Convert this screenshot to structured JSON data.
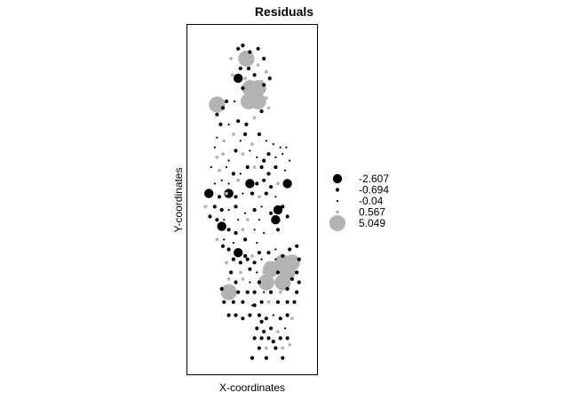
{
  "chart_data": {
    "type": "scatter",
    "title": "Residuals",
    "xlabel": "X-coordinates",
    "ylabel": "Y-coordinates",
    "xlim": [
      0,
      100
    ],
    "ylim": [
      0,
      100
    ],
    "grid": false,
    "axes_ticks": false,
    "legend_position": "right",
    "legend": [
      {
        "label": "-2.607",
        "value": -2.607,
        "color": "#000000"
      },
      {
        "label": "-0.694",
        "value": -0.694,
        "color": "#000000"
      },
      {
        "label": "-0.04",
        "value": -0.04,
        "color": "#000000"
      },
      {
        "label": "0.567",
        "value": 0.567,
        "color": "#b3b3b3"
      },
      {
        "label": "5.049",
        "value": 5.049,
        "color": "#b3b3b3"
      }
    ],
    "colors": {
      "negative": "#000000",
      "positive": "#b3b3b3"
    },
    "points": [
      {
        "x": 38,
        "y": 96,
        "r": -0.694
      },
      {
        "x": 42,
        "y": 97,
        "r": -0.694
      },
      {
        "x": 48,
        "y": 95,
        "r": -0.694
      },
      {
        "x": 55,
        "y": 96,
        "r": -0.694
      },
      {
        "x": 32,
        "y": 93,
        "r": 0.567
      },
      {
        "x": 45,
        "y": 93,
        "r": 5.049
      },
      {
        "x": 50,
        "y": 92,
        "r": 0.567
      },
      {
        "x": 60,
        "y": 93,
        "r": -0.694
      },
      {
        "x": 40,
        "y": 90,
        "r": -0.694
      },
      {
        "x": 47,
        "y": 90,
        "r": -0.694
      },
      {
        "x": 55,
        "y": 91,
        "r": 0.567
      },
      {
        "x": 62,
        "y": 89,
        "r": 0.567
      },
      {
        "x": 33,
        "y": 88,
        "r": 0.567
      },
      {
        "x": 38,
        "y": 87,
        "r": -2.607
      },
      {
        "x": 44,
        "y": 87,
        "r": 0.567
      },
      {
        "x": 52,
        "y": 88,
        "r": -0.694
      },
      {
        "x": 58,
        "y": 86,
        "r": 0.567
      },
      {
        "x": 65,
        "y": 87,
        "r": -0.694
      },
      {
        "x": 42,
        "y": 84,
        "r": -0.694
      },
      {
        "x": 48,
        "y": 84,
        "r": 5.049
      },
      {
        "x": 55,
        "y": 84,
        "r": 5.049
      },
      {
        "x": 60,
        "y": 85,
        "r": -0.694
      },
      {
        "x": 20,
        "y": 79,
        "r": 5.049
      },
      {
        "x": 25,
        "y": 78,
        "r": -0.694
      },
      {
        "x": 20,
        "y": 76,
        "r": -0.694
      },
      {
        "x": 28,
        "y": 80,
        "r": -0.694
      },
      {
        "x": 35,
        "y": 80,
        "r": -0.04
      },
      {
        "x": 43,
        "y": 81,
        "r": 0.567
      },
      {
        "x": 47,
        "y": 80,
        "r": 5.049
      },
      {
        "x": 55,
        "y": 80,
        "r": 5.049
      },
      {
        "x": 62,
        "y": 81,
        "r": 0.567
      },
      {
        "x": 58,
        "y": 77,
        "r": -0.694
      },
      {
        "x": 64,
        "y": 78,
        "r": 0.567
      },
      {
        "x": 23,
        "y": 73,
        "r": -0.694
      },
      {
        "x": 30,
        "y": 73,
        "r": -0.04
      },
      {
        "x": 38,
        "y": 74,
        "r": -0.694
      },
      {
        "x": 45,
        "y": 73,
        "r": -0.694
      },
      {
        "x": 52,
        "y": 75,
        "r": 0.567
      },
      {
        "x": 20,
        "y": 69,
        "r": -0.04
      },
      {
        "x": 26,
        "y": 68,
        "r": 0.567
      },
      {
        "x": 34,
        "y": 70,
        "r": 0.567
      },
      {
        "x": 40,
        "y": 68,
        "r": -0.04
      },
      {
        "x": 44,
        "y": 70,
        "r": -0.694
      },
      {
        "x": 50,
        "y": 67,
        "r": 0.567
      },
      {
        "x": 56,
        "y": 70,
        "r": -0.694
      },
      {
        "x": 62,
        "y": 68,
        "r": -0.04
      },
      {
        "x": 68,
        "y": 67,
        "r": -0.04
      },
      {
        "x": 74,
        "y": 66,
        "r": -0.04
      },
      {
        "x": 79,
        "y": 66,
        "r": -0.04
      },
      {
        "x": 18,
        "y": 66,
        "r": -0.04
      },
      {
        "x": 20,
        "y": 63,
        "r": 0.567
      },
      {
        "x": 25,
        "y": 64,
        "r": 0.567
      },
      {
        "x": 30,
        "y": 62,
        "r": -0.04
      },
      {
        "x": 36,
        "y": 65,
        "r": -0.694
      },
      {
        "x": 42,
        "y": 64,
        "r": 0.567
      },
      {
        "x": 48,
        "y": 65,
        "r": -0.04
      },
      {
        "x": 54,
        "y": 63,
        "r": -0.04
      },
      {
        "x": 60,
        "y": 62,
        "r": -0.694
      },
      {
        "x": 64,
        "y": 64,
        "r": -0.694
      },
      {
        "x": 70,
        "y": 63,
        "r": -0.04
      },
      {
        "x": 76,
        "y": 64,
        "r": -0.04
      },
      {
        "x": 82,
        "y": 62,
        "r": -0.04
      },
      {
        "x": 15,
        "y": 60,
        "r": -0.04
      },
      {
        "x": 22,
        "y": 59,
        "r": 0.567
      },
      {
        "x": 28,
        "y": 60,
        "r": -0.04
      },
      {
        "x": 34,
        "y": 58,
        "r": -0.694
      },
      {
        "x": 40,
        "y": 58,
        "r": -0.04
      },
      {
        "x": 46,
        "y": 60,
        "r": -0.694
      },
      {
        "x": 52,
        "y": 60,
        "r": 0.567
      },
      {
        "x": 58,
        "y": 60,
        "r": -0.694
      },
      {
        "x": 64,
        "y": 58,
        "r": -0.694
      },
      {
        "x": 70,
        "y": 60,
        "r": -0.694
      },
      {
        "x": 78,
        "y": 59,
        "r": -0.04
      },
      {
        "x": 18,
        "y": 55,
        "r": -0.04
      },
      {
        "x": 24,
        "y": 56,
        "r": -0.04
      },
      {
        "x": 30,
        "y": 55,
        "r": -0.04
      },
      {
        "x": 38,
        "y": 56,
        "r": 0.567
      },
      {
        "x": 48,
        "y": 55,
        "r": -2.607
      },
      {
        "x": 54,
        "y": 55,
        "r": -0.694
      },
      {
        "x": 60,
        "y": 56,
        "r": -0.694
      },
      {
        "x": 66,
        "y": 54,
        "r": -0.694
      },
      {
        "x": 72,
        "y": 55,
        "r": 0.567
      },
      {
        "x": 80,
        "y": 55,
        "r": -2.607
      },
      {
        "x": 14,
        "y": 52,
        "r": -0.04
      },
      {
        "x": 22,
        "y": 51,
        "r": -0.694
      },
      {
        "x": 28,
        "y": 52,
        "r": 0.567
      },
      {
        "x": 36,
        "y": 51,
        "r": -0.694
      },
      {
        "x": 42,
        "y": 52,
        "r": -0.04
      },
      {
        "x": 50,
        "y": 52,
        "r": -0.694
      },
      {
        "x": 56,
        "y": 51,
        "r": 0.567
      },
      {
        "x": 62,
        "y": 52,
        "r": -0.694
      },
      {
        "x": 70,
        "y": 51,
        "r": -0.04
      },
      {
        "x": 12,
        "y": 51,
        "r": -0.04
      },
      {
        "x": 13,
        "y": 52,
        "r": -2.607
      },
      {
        "x": 30,
        "y": 52,
        "r": -2.607
      },
      {
        "x": 10,
        "y": 48,
        "r": 0.567
      },
      {
        "x": 18,
        "y": 48,
        "r": -0.694
      },
      {
        "x": 24,
        "y": 47,
        "r": -0.694
      },
      {
        "x": 30,
        "y": 47,
        "r": -0.04
      },
      {
        "x": 36,
        "y": 48,
        "r": -0.694
      },
      {
        "x": 44,
        "y": 46,
        "r": -0.04
      },
      {
        "x": 52,
        "y": 47,
        "r": -0.694
      },
      {
        "x": 58,
        "y": 48,
        "r": -0.04
      },
      {
        "x": 66,
        "y": 46,
        "r": -0.694
      },
      {
        "x": 72,
        "y": 47,
        "r": -2.607
      },
      {
        "x": 76,
        "y": 48,
        "r": -0.694
      },
      {
        "x": 14,
        "y": 45,
        "r": -0.694
      },
      {
        "x": 20,
        "y": 44,
        "r": -0.694
      },
      {
        "x": 26,
        "y": 44,
        "r": -0.04
      },
      {
        "x": 38,
        "y": 44,
        "r": -0.04
      },
      {
        "x": 46,
        "y": 44,
        "r": 0.567
      },
      {
        "x": 56,
        "y": 44,
        "r": -0.04
      },
      {
        "x": 70,
        "y": 44,
        "r": -2.607
      },
      {
        "x": 80,
        "y": 45,
        "r": -0.694
      },
      {
        "x": 24,
        "y": 42,
        "r": -2.607
      },
      {
        "x": 30,
        "y": 41,
        "r": -0.694
      },
      {
        "x": 36,
        "y": 40,
        "r": -0.694
      },
      {
        "x": 42,
        "y": 41,
        "r": 0.567
      },
      {
        "x": 52,
        "y": 41,
        "r": -0.04
      },
      {
        "x": 60,
        "y": 40,
        "r": -0.04
      },
      {
        "x": 72,
        "y": 41,
        "r": -0.694
      },
      {
        "x": 20,
        "y": 38,
        "r": 0.567
      },
      {
        "x": 26,
        "y": 38,
        "r": -0.04
      },
      {
        "x": 34,
        "y": 37,
        "r": -0.04
      },
      {
        "x": 44,
        "y": 38,
        "r": -0.694
      },
      {
        "x": 54,
        "y": 37,
        "r": -0.04
      },
      {
        "x": 25,
        "y": 36,
        "r": -0.694
      },
      {
        "x": 30,
        "y": 35,
        "r": -0.694
      },
      {
        "x": 38,
        "y": 34,
        "r": -2.607
      },
      {
        "x": 44,
        "y": 33,
        "r": -0.694
      },
      {
        "x": 50,
        "y": 33,
        "r": 0.567
      },
      {
        "x": 56,
        "y": 34,
        "r": -0.694
      },
      {
        "x": 64,
        "y": 34,
        "r": -0.694
      },
      {
        "x": 70,
        "y": 35,
        "r": -0.04
      },
      {
        "x": 76,
        "y": 33,
        "r": -0.694
      },
      {
        "x": 82,
        "y": 35,
        "r": -0.694
      },
      {
        "x": 88,
        "y": 36,
        "r": -0.694
      },
      {
        "x": 28,
        "y": 31,
        "r": 0.567
      },
      {
        "x": 34,
        "y": 32,
        "r": -0.694
      },
      {
        "x": 40,
        "y": 31,
        "r": -0.694
      },
      {
        "x": 46,
        "y": 32,
        "r": -0.694
      },
      {
        "x": 52,
        "y": 31,
        "r": -0.694
      },
      {
        "x": 58,
        "y": 32,
        "r": -0.04
      },
      {
        "x": 64,
        "y": 31,
        "r": 0.567
      },
      {
        "x": 70,
        "y": 32,
        "r": -0.04
      },
      {
        "x": 76,
        "y": 31,
        "r": 5.049
      },
      {
        "x": 84,
        "y": 31,
        "r": 5.049
      },
      {
        "x": 90,
        "y": 32,
        "r": -0.694
      },
      {
        "x": 32,
        "y": 28,
        "r": -0.694
      },
      {
        "x": 40,
        "y": 28,
        "r": 0.567
      },
      {
        "x": 48,
        "y": 29,
        "r": -0.694
      },
      {
        "x": 54,
        "y": 28,
        "r": -0.04
      },
      {
        "x": 60,
        "y": 28,
        "r": 0.567
      },
      {
        "x": 66,
        "y": 29,
        "r": 5.049
      },
      {
        "x": 72,
        "y": 28,
        "r": -0.694
      },
      {
        "x": 80,
        "y": 28,
        "r": 5.049
      },
      {
        "x": 88,
        "y": 28,
        "r": -0.694
      },
      {
        "x": 30,
        "y": 26,
        "r": 0.567
      },
      {
        "x": 36,
        "y": 25,
        "r": -0.694
      },
      {
        "x": 42,
        "y": 26,
        "r": 0.567
      },
      {
        "x": 48,
        "y": 25,
        "r": -0.04
      },
      {
        "x": 56,
        "y": 25,
        "r": -0.694
      },
      {
        "x": 62,
        "y": 25,
        "r": 5.049
      },
      {
        "x": 70,
        "y": 25,
        "r": 0.567
      },
      {
        "x": 76,
        "y": 25,
        "r": 5.049
      },
      {
        "x": 84,
        "y": 26,
        "r": -0.694
      },
      {
        "x": 90,
        "y": 25,
        "r": -0.694
      },
      {
        "x": 24,
        "y": 23,
        "r": -0.694
      },
      {
        "x": 30,
        "y": 22,
        "r": 5.049
      },
      {
        "x": 38,
        "y": 22,
        "r": -0.694
      },
      {
        "x": 46,
        "y": 22,
        "r": -0.694
      },
      {
        "x": 52,
        "y": 22,
        "r": -0.694
      },
      {
        "x": 60,
        "y": 22,
        "r": -0.04
      },
      {
        "x": 66,
        "y": 22,
        "r": -0.694
      },
      {
        "x": 74,
        "y": 22,
        "r": 0.567
      },
      {
        "x": 80,
        "y": 23,
        "r": -0.694
      },
      {
        "x": 88,
        "y": 22,
        "r": -0.694
      },
      {
        "x": 26,
        "y": 19,
        "r": -0.694
      },
      {
        "x": 34,
        "y": 19,
        "r": -0.694
      },
      {
        "x": 42,
        "y": 19,
        "r": -0.694
      },
      {
        "x": 50,
        "y": 18,
        "r": -0.04
      },
      {
        "x": 58,
        "y": 19,
        "r": -0.694
      },
      {
        "x": 64,
        "y": 19,
        "r": 0.567
      },
      {
        "x": 72,
        "y": 19,
        "r": -0.694
      },
      {
        "x": 80,
        "y": 19,
        "r": -0.694
      },
      {
        "x": 86,
        "y": 19,
        "r": -0.694
      },
      {
        "x": 30,
        "y": 15,
        "r": -0.694
      },
      {
        "x": 36,
        "y": 15,
        "r": -0.694
      },
      {
        "x": 42,
        "y": 14,
        "r": -0.694
      },
      {
        "x": 48,
        "y": 15,
        "r": -0.694
      },
      {
        "x": 56,
        "y": 15,
        "r": -0.694
      },
      {
        "x": 62,
        "y": 14,
        "r": -0.694
      },
      {
        "x": 68,
        "y": 15,
        "r": -0.04
      },
      {
        "x": 74,
        "y": 14,
        "r": -0.694
      },
      {
        "x": 80,
        "y": 15,
        "r": -0.694
      },
      {
        "x": 84,
        "y": 14,
        "r": 0.567
      },
      {
        "x": 52,
        "y": 18,
        "r": -0.694
      },
      {
        "x": 58,
        "y": 13,
        "r": -0.694
      },
      {
        "x": 54,
        "y": 11,
        "r": -0.694
      },
      {
        "x": 60,
        "y": 10,
        "r": -0.694
      },
      {
        "x": 66,
        "y": 11,
        "r": -0.694
      },
      {
        "x": 72,
        "y": 10,
        "r": 0.567
      },
      {
        "x": 78,
        "y": 11,
        "r": -0.04
      },
      {
        "x": 52,
        "y": 8,
        "r": -0.694
      },
      {
        "x": 58,
        "y": 8,
        "r": -0.694
      },
      {
        "x": 64,
        "y": 8,
        "r": -0.694
      },
      {
        "x": 68,
        "y": 7,
        "r": -0.694
      },
      {
        "x": 74,
        "y": 8,
        "r": -0.694
      },
      {
        "x": 80,
        "y": 8,
        "r": -0.694
      },
      {
        "x": 56,
        "y": 5,
        "r": -0.694
      },
      {
        "x": 62,
        "y": 5,
        "r": 0.567
      },
      {
        "x": 70,
        "y": 5,
        "r": -0.694
      },
      {
        "x": 76,
        "y": 5,
        "r": 0.567
      },
      {
        "x": 82,
        "y": 6,
        "r": 0.567
      },
      {
        "x": 50,
        "y": 2,
        "r": -0.694
      },
      {
        "x": 62,
        "y": 2,
        "r": -0.694
      },
      {
        "x": 76,
        "y": 2,
        "r": -0.694
      }
    ]
  }
}
